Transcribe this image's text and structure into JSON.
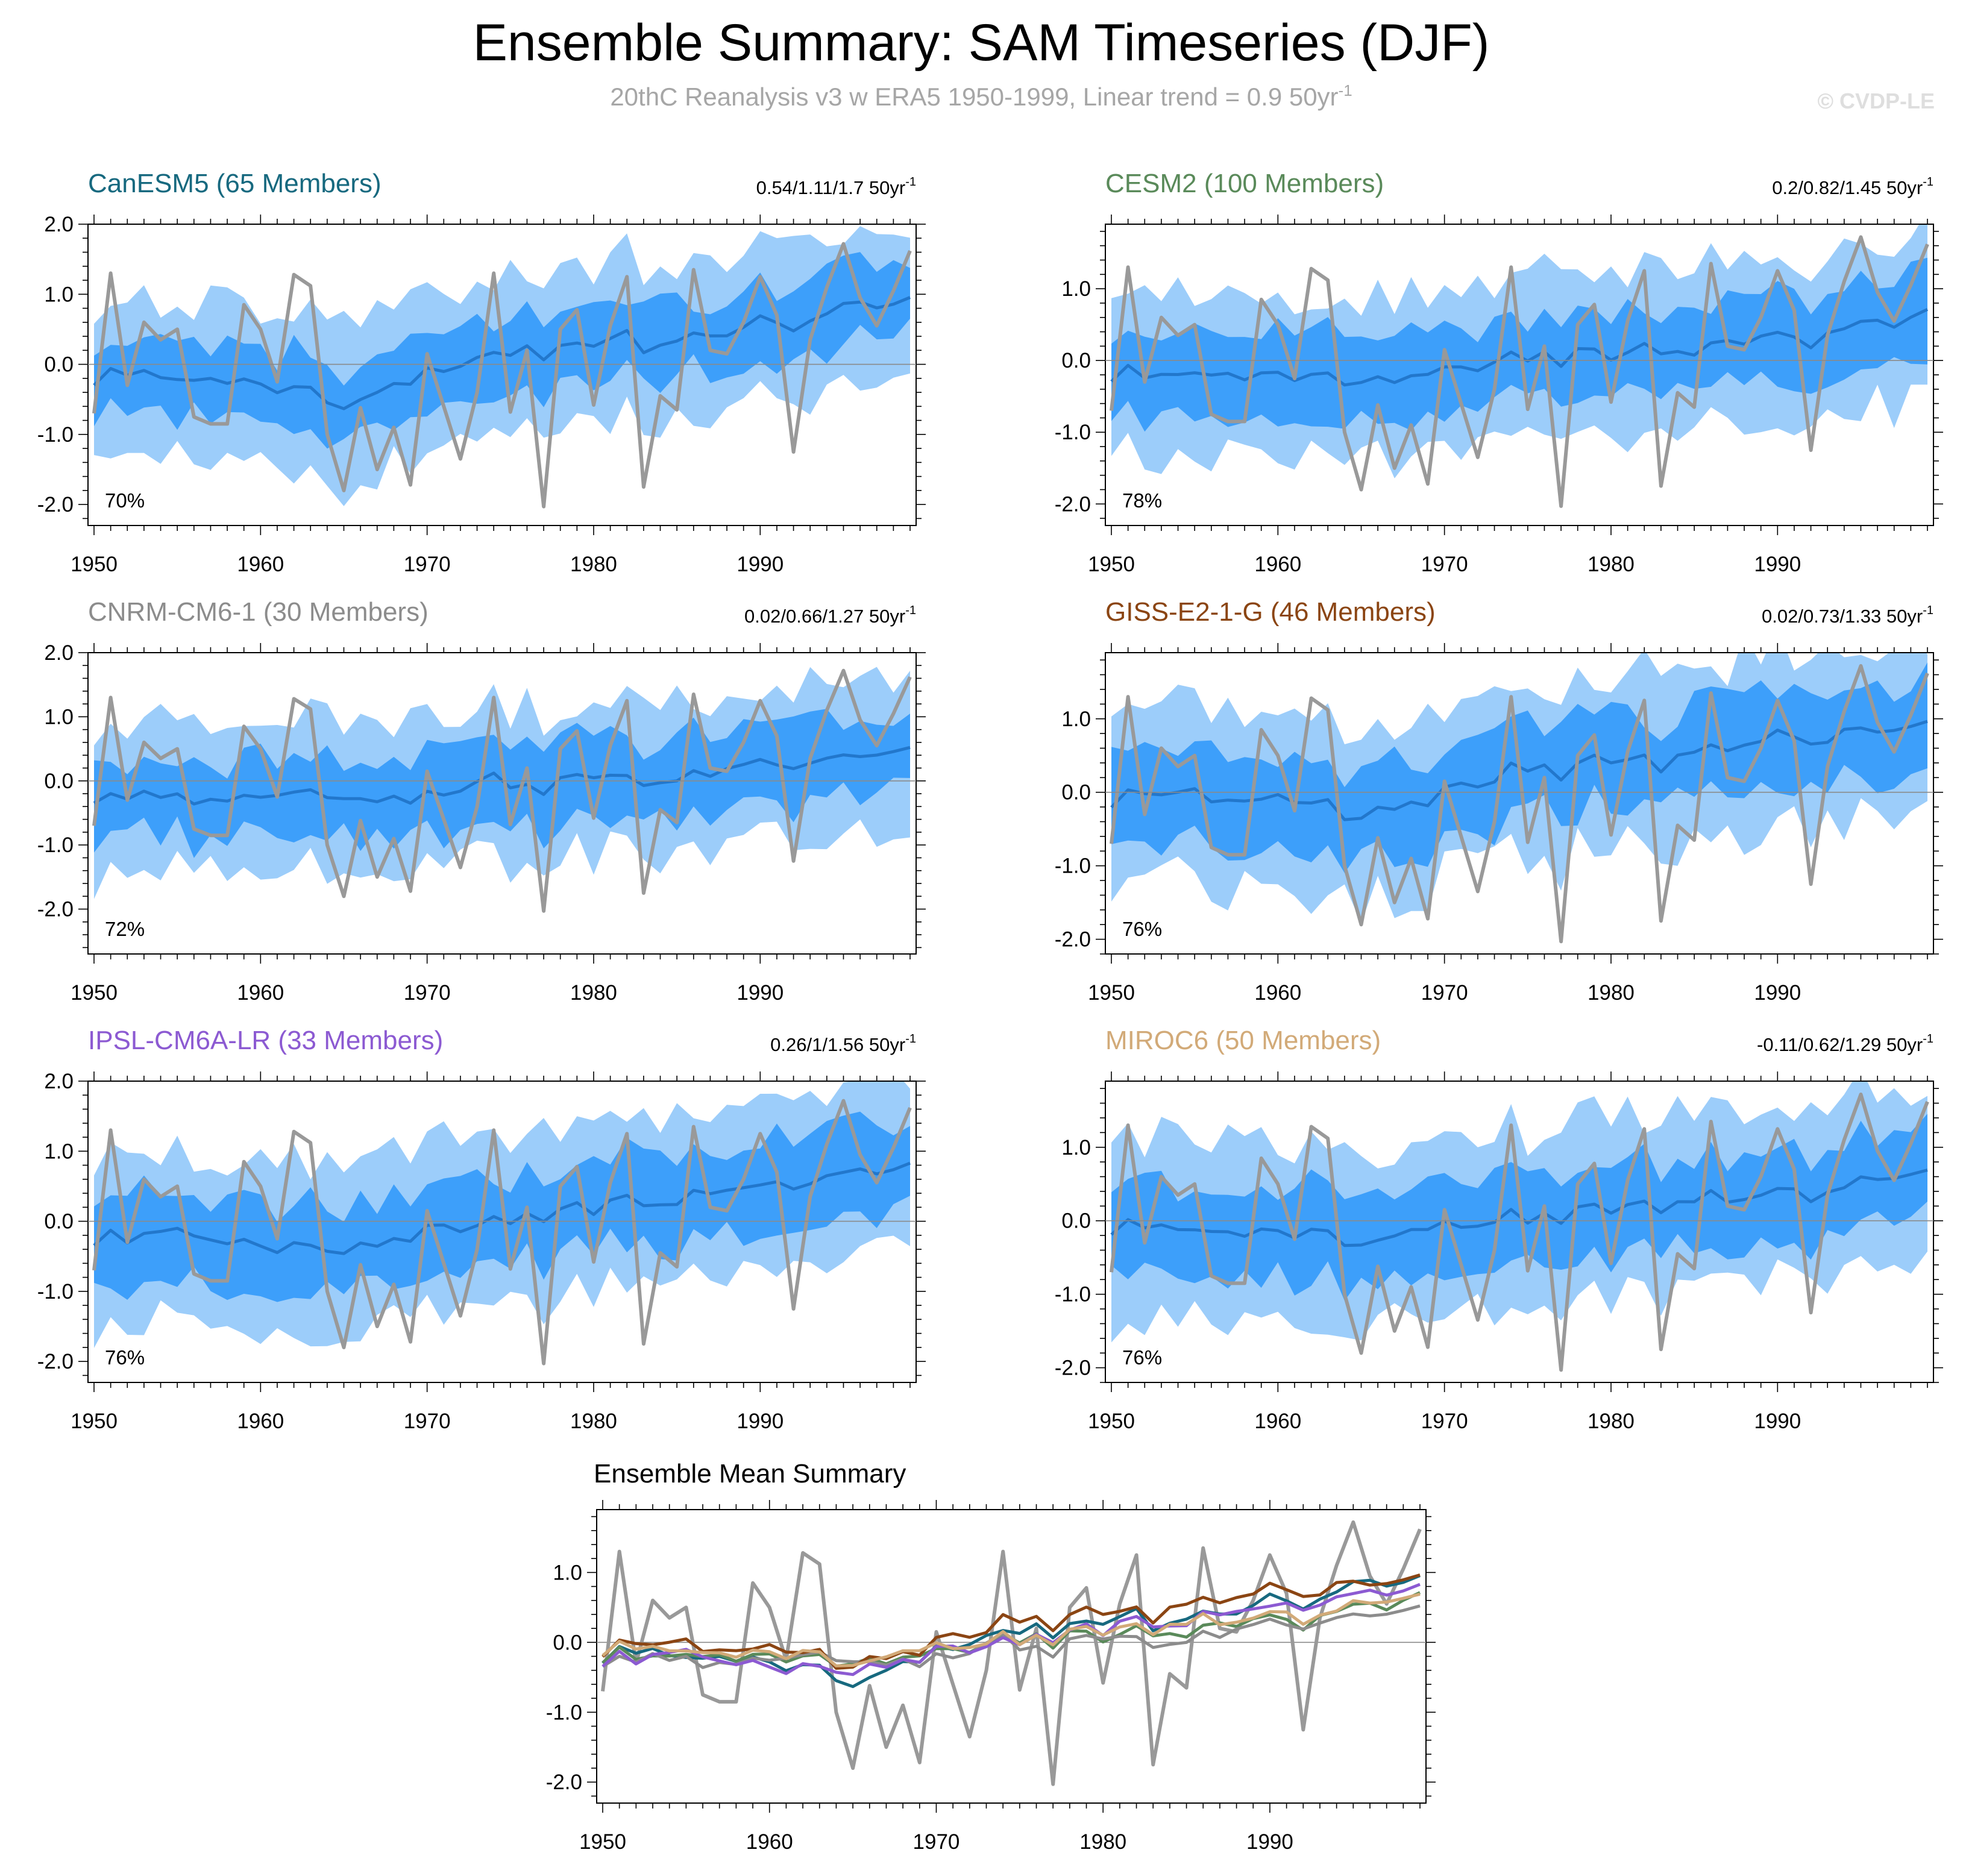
{
  "title": "Ensemble Summary: SAM Timeseries (DJF)",
  "subtitle": "20thC Reanalysis v3 w ERA5 1950-1999, Linear trend = 0.9 50yr",
  "subtitle_sup": "-1",
  "watermark": "© CVDP-LE",
  "colors": {
    "outer_band": "#9ccdfa",
    "inner_band": "#3d9ffa",
    "ensemble_mean": "#2277cc",
    "observations": "#999999"
  },
  "chart_data": {
    "type": "line",
    "x_start": 1950,
    "x_end": 1999,
    "observations": [
      -0.7,
      1.3,
      -0.3,
      0.6,
      0.35,
      0.5,
      -0.75,
      -0.85,
      -0.85,
      0.85,
      0.5,
      -0.25,
      1.28,
      1.12,
      -1.0,
      -1.8,
      -0.62,
      -1.5,
      -0.9,
      -1.72,
      0.15,
      -0.6,
      -1.35,
      -0.4,
      1.3,
      -0.68,
      0.2,
      -2.03,
      0.5,
      0.78,
      -0.58,
      0.55,
      1.25,
      -1.75,
      -0.45,
      -0.65,
      1.35,
      0.2,
      0.15,
      0.6,
      1.25,
      0.7,
      -1.25,
      0.35,
      1.1,
      1.72,
      0.95,
      0.55,
      1.05,
      1.62
    ],
    "panels": [
      {
        "name": "CanESM5",
        "title": "CanESM5 (65 Members)",
        "color": "#17697f",
        "trend": "0.54/1.11/1.7 50yr",
        "trend_sup": "-1",
        "percent": "70%",
        "ylim": [
          -2.3,
          2.0
        ],
        "yticks": [
          2.0,
          1.0,
          0.0,
          -1.0,
          -2.0
        ],
        "ytick_labels": [
          "2.0",
          "1.0",
          "0.0",
          "-1.0",
          "-2.0"
        ],
        "mean_base": -0.2,
        "mean_end": 0.8,
        "amp": 0.16,
        "inner_half": 0.52,
        "outer_half": 1.12,
        "rough": 0.22,
        "dip": -0.35,
        "seed": 11
      },
      {
        "name": "CESM2",
        "title": "CESM2 (100 Members)",
        "color": "#5a8a5a",
        "trend": "0.2/0.82/1.45 50yr",
        "trend_sup": "-1",
        "percent": "78%",
        "ylim": [
          -2.3,
          1.9
        ],
        "yticks": [
          1.0,
          0.0,
          -1.0,
          -2.0
        ],
        "ytick_labels": [
          "1.0",
          "0.0",
          "-1.0",
          "-2.0"
        ],
        "mean_base": -0.2,
        "mean_end": 0.5,
        "amp": 0.14,
        "inner_half": 0.58,
        "outer_half": 1.15,
        "rough": 0.2,
        "dip": -0.1,
        "seed": 23
      },
      {
        "name": "CNRM-CM6-1",
        "title": "CNRM-CM6-1 (30 Members)",
        "color": "#8c8c8c",
        "trend": "0.02/0.66/1.27 50yr",
        "trend_sup": "-1",
        "percent": "72%",
        "ylim": [
          -2.7,
          2.0
        ],
        "yticks": [
          2.0,
          1.0,
          0.0,
          -1.0,
          -2.0
        ],
        "ytick_labels": [
          "2.0",
          "1.0",
          "0.0",
          "-1.0",
          "-2.0"
        ],
        "mean_base": -0.25,
        "mean_end": 0.35,
        "amp": 0.16,
        "inner_half": 0.6,
        "outer_half": 1.2,
        "rough": 0.25,
        "dip": -0.05,
        "seed": 37
      },
      {
        "name": "GISS-E2-1-G",
        "title": "GISS-E2-1-G (46 Members)",
        "color": "#8b4513",
        "trend": "0.02/0.73/1.33 50yr",
        "trend_sup": "-1",
        "percent": "76%",
        "ylim": [
          -2.2,
          1.9
        ],
        "yticks": [
          1.0,
          0.0,
          -1.0,
          -2.0
        ],
        "ytick_labels": [
          "1.0",
          "0.0",
          "-1.0",
          "-2.0"
        ],
        "mean_base": -0.1,
        "mean_end": 0.9,
        "amp": 0.2,
        "inner_half": 0.62,
        "outer_half": 1.2,
        "rough": 0.25,
        "dip": -0.3,
        "seed": 51
      },
      {
        "name": "IPSL-CM6A-LR",
        "title": "IPSL-CM6A-LR (33 Members)",
        "color": "#8c5ad2",
        "trend": "0.26/1/1.56 50yr",
        "trend_sup": "-1",
        "percent": "76%",
        "ylim": [
          -2.3,
          2.0
        ],
        "yticks": [
          2.0,
          1.0,
          0.0,
          -1.0,
          -2.0
        ],
        "ytick_labels": [
          "2.0",
          "1.0",
          "0.0",
          "-1.0",
          "-2.0"
        ],
        "mean_base": -0.25,
        "mean_end": 0.75,
        "amp": 0.16,
        "inner_half": 0.62,
        "outer_half": 1.2,
        "rough": 0.22,
        "dip": -0.3,
        "seed": 67
      },
      {
        "name": "MIROC6",
        "title": "MIROC6 (50 Members)",
        "color": "#d2aa78",
        "trend": "-0.11/0.62/1.29 50yr",
        "trend_sup": "-1",
        "percent": "76%",
        "ylim": [
          -2.2,
          1.9
        ],
        "yticks": [
          1.0,
          0.0,
          -1.0,
          -2.0
        ],
        "ytick_labels": [
          "1.0",
          "0.0",
          "-1.0",
          "-2.0"
        ],
        "mean_base": -0.1,
        "mean_end": 0.5,
        "amp": 0.14,
        "inner_half": 0.6,
        "outer_half": 1.2,
        "rough": 0.22,
        "dip": -0.15,
        "seed": 79
      }
    ],
    "xticks": [
      1950,
      1960,
      1970,
      1980,
      1990
    ],
    "xtick_labels": [
      "1950",
      "1960",
      "1970",
      "1980",
      "1990"
    ],
    "summary": {
      "title": "Ensemble Mean Summary",
      "ylim": [
        -2.3,
        1.9
      ],
      "yticks": [
        1.0,
        0.0,
        -1.0,
        -2.0
      ],
      "ytick_labels": [
        "1.0",
        "0.0",
        "-1.0",
        "-2.0"
      ]
    }
  }
}
